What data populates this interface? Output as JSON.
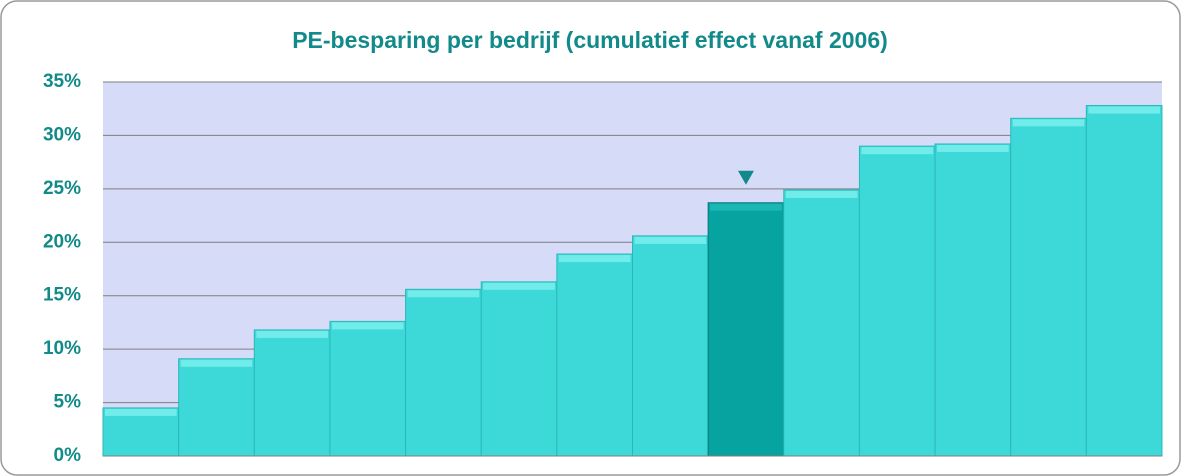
{
  "chart_data": {
    "type": "bar",
    "title": "PE-besparing per bedrijf (cumulatief effect vanaf 2006)",
    "categories": [
      null,
      null,
      null,
      null,
      null,
      null,
      null,
      null,
      null,
      null,
      null,
      null,
      null,
      null
    ],
    "values": [
      4.5,
      9.1,
      11.8,
      12.6,
      15.6,
      16.3,
      18.9,
      20.6,
      23.7,
      24.9,
      29.0,
      29.2,
      31.6,
      32.8
    ],
    "colors": [
      "#3dd9d9",
      "#3dd9d9",
      "#3dd9d9",
      "#3dd9d9",
      "#3dd9d9",
      "#3dd9d9",
      "#3dd9d9",
      "#3dd9d9",
      "#06a3a0",
      "#3dd9d9",
      "#3dd9d9",
      "#3dd9d9",
      "#3dd9d9",
      "#3dd9d9"
    ],
    "ylim": [
      0,
      35
    ],
    "yticks": [
      {
        "value": 0,
        "label": "0%"
      },
      {
        "value": 5,
        "label": "5%"
      },
      {
        "value": 10,
        "label": "10%"
      },
      {
        "value": 15,
        "label": "15%"
      },
      {
        "value": 20,
        "label": "20%"
      },
      {
        "value": 25,
        "label": "25%"
      },
      {
        "value": 30,
        "label": "30%"
      },
      {
        "value": 35,
        "label": "35%"
      }
    ],
    "grid": true
  }
}
